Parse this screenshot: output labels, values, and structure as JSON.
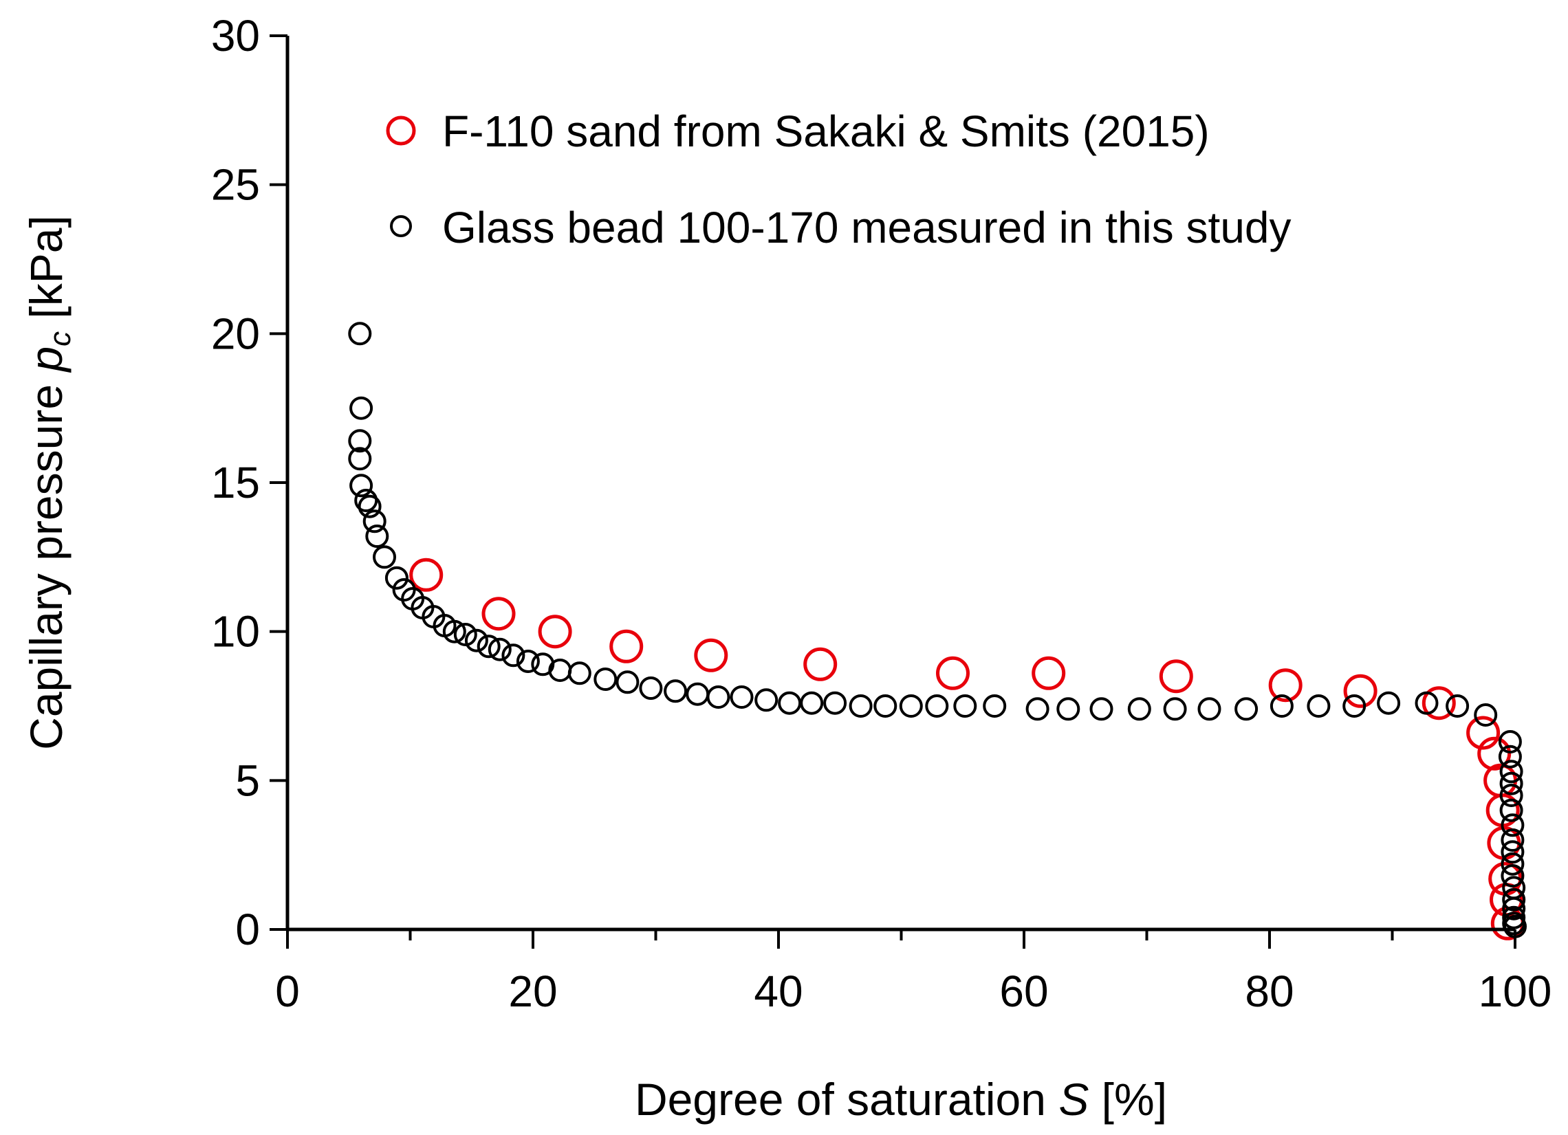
{
  "chart_data": {
    "type": "scatter",
    "xlabel": {
      "prefix": "Degree of saturation ",
      "symbol": "S",
      "suffix": " [%]"
    },
    "ylabel": {
      "prefix": "Capillary pressure ",
      "symbol": "p",
      "subscript": "c",
      "suffix": " [kPa]"
    },
    "xlim": [
      0,
      100
    ],
    "ylim": [
      0,
      30
    ],
    "xticks": [
      0,
      20,
      40,
      60,
      80,
      100
    ],
    "yticks": [
      0,
      5,
      10,
      15,
      20,
      25,
      30
    ],
    "xtick_labels": [
      "0",
      "20",
      "40",
      "60",
      "80",
      "100"
    ],
    "ytick_labels": [
      "0",
      "5",
      "10",
      "15",
      "20",
      "25",
      "30"
    ],
    "grid": false,
    "legend_position": "top-left",
    "series": [
      {
        "name": "F-110 sand from Sakaki & Smits (2015)",
        "color": "#e8000b",
        "marker": "open-circle-large",
        "points": [
          [
            11.3,
            11.9
          ],
          [
            17.2,
            10.6
          ],
          [
            21.8,
            10.0
          ],
          [
            27.6,
            9.5
          ],
          [
            34.5,
            9.2
          ],
          [
            43.4,
            8.9
          ],
          [
            54.2,
            8.6
          ],
          [
            62.0,
            8.6
          ],
          [
            72.4,
            8.5
          ],
          [
            81.3,
            8.2
          ],
          [
            87.4,
            8.0
          ],
          [
            93.8,
            7.6
          ],
          [
            97.4,
            6.6
          ],
          [
            98.3,
            5.9
          ],
          [
            98.8,
            5.0
          ],
          [
            99.0,
            4.0
          ],
          [
            99.1,
            2.9
          ],
          [
            99.2,
            1.7
          ],
          [
            99.3,
            1.0
          ],
          [
            99.4,
            0.2
          ]
        ]
      },
      {
        "name": "Glass bead 100-170 measured in this study",
        "color": "#000000",
        "marker": "open-circle-small",
        "points": [
          [
            5.9,
            20.0
          ],
          [
            6.0,
            17.5
          ],
          [
            5.9,
            16.4
          ],
          [
            5.9,
            15.8
          ],
          [
            6.0,
            14.9
          ],
          [
            6.4,
            14.4
          ],
          [
            6.7,
            14.2
          ],
          [
            7.1,
            13.7
          ],
          [
            7.3,
            13.2
          ],
          [
            7.9,
            12.5
          ],
          [
            8.9,
            11.8
          ],
          [
            9.5,
            11.4
          ],
          [
            10.2,
            11.1
          ],
          [
            11.0,
            10.8
          ],
          [
            11.9,
            10.5
          ],
          [
            12.8,
            10.2
          ],
          [
            13.6,
            10.0
          ],
          [
            14.5,
            9.9
          ],
          [
            15.4,
            9.7
          ],
          [
            16.4,
            9.5
          ],
          [
            17.3,
            9.4
          ],
          [
            18.4,
            9.2
          ],
          [
            19.6,
            9.0
          ],
          [
            20.8,
            8.9
          ],
          [
            22.2,
            8.7
          ],
          [
            23.8,
            8.6
          ],
          [
            25.9,
            8.4
          ],
          [
            27.7,
            8.3
          ],
          [
            29.6,
            8.1
          ],
          [
            31.6,
            8.0
          ],
          [
            33.4,
            7.9
          ],
          [
            35.1,
            7.8
          ],
          [
            37.0,
            7.8
          ],
          [
            39.0,
            7.7
          ],
          [
            40.9,
            7.6
          ],
          [
            42.7,
            7.6
          ],
          [
            44.6,
            7.6
          ],
          [
            46.7,
            7.5
          ],
          [
            48.7,
            7.5
          ],
          [
            50.8,
            7.5
          ],
          [
            52.9,
            7.5
          ],
          [
            55.2,
            7.5
          ],
          [
            57.6,
            7.5
          ],
          [
            61.1,
            7.4
          ],
          [
            63.6,
            7.4
          ],
          [
            66.3,
            7.4
          ],
          [
            69.4,
            7.4
          ],
          [
            72.3,
            7.4
          ],
          [
            75.1,
            7.4
          ],
          [
            78.1,
            7.4
          ],
          [
            81.0,
            7.5
          ],
          [
            84.0,
            7.5
          ],
          [
            86.9,
            7.5
          ],
          [
            89.7,
            7.6
          ],
          [
            92.8,
            7.6
          ],
          [
            95.3,
            7.5
          ],
          [
            97.6,
            7.2
          ],
          [
            99.6,
            6.3
          ],
          [
            99.6,
            5.8
          ],
          [
            99.7,
            5.3
          ],
          [
            99.7,
            4.9
          ],
          [
            99.7,
            4.5
          ],
          [
            99.7,
            4.0
          ],
          [
            99.8,
            3.5
          ],
          [
            99.8,
            3.0
          ],
          [
            99.8,
            2.6
          ],
          [
            99.8,
            2.2
          ],
          [
            99.8,
            1.8
          ],
          [
            99.9,
            1.4
          ],
          [
            99.9,
            1.0
          ],
          [
            99.9,
            0.7
          ],
          [
            99.9,
            0.4
          ],
          [
            99.9,
            0.2
          ],
          [
            100.0,
            0.1
          ]
        ]
      }
    ]
  }
}
